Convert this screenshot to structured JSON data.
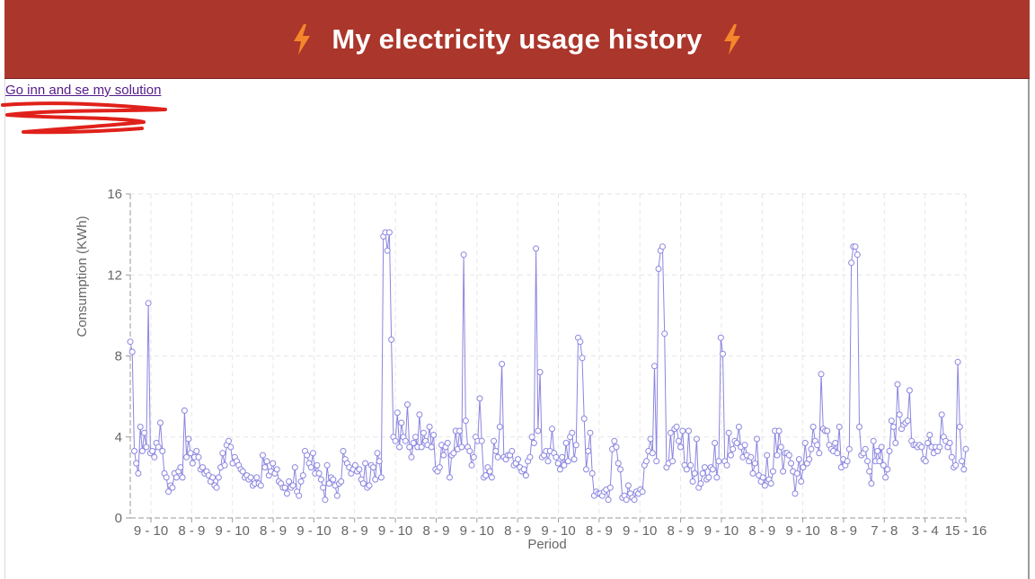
{
  "header": {
    "title": "My electricity usage history",
    "background": "#ab362b",
    "icon": "lightning-bolt-icon",
    "icon_color": "#f5862b"
  },
  "link": {
    "text": "Go inn and se my solution"
  },
  "annotation": {
    "icon": "red-scribble-underline",
    "color": "#e0211b"
  },
  "chart_data": {
    "type": "line",
    "title": "",
    "xlabel": "Period",
    "ylabel": "Consumption (KWh)",
    "ylim": [
      0,
      16
    ],
    "yticks": [
      0,
      4,
      8,
      12,
      16
    ],
    "grid": true,
    "line_color": "#8b85e0",
    "x_tick_labels": [
      "9 - 10",
      "8 - 9",
      "9 - 10",
      "8 - 9",
      "9 - 10",
      "8 - 9",
      "9 - 10",
      "8 - 9",
      "9 - 10",
      "8 - 9",
      "9 - 10",
      "8 - 9",
      "9 - 10",
      "8 - 9",
      "9 - 10",
      "8 - 9",
      "9 - 10",
      "8 - 9",
      "7 - 8",
      "3 - 4",
      "15 - 16"
    ],
    "series": [
      {
        "values": [
          8.7,
          8.2,
          3.3,
          2.7,
          2.2,
          4.5,
          3.3,
          4.2,
          3.5,
          10.6,
          3.2,
          3.3,
          3.0,
          3.7,
          3.5,
          4.7,
          3.3,
          2.2,
          2.0,
          1.3,
          1.6,
          1.5,
          2.2,
          2.0,
          2.3,
          2.5,
          2.0,
          5.3,
          3.0,
          3.9,
          3.2,
          2.7,
          3.0,
          3.3,
          3.0,
          2.4,
          2.5,
          2.2,
          2.3,
          2.1,
          1.8,
          2.0,
          1.6,
          1.5,
          2.0,
          2.5,
          3.2,
          2.6,
          3.6,
          3.8,
          3.5,
          2.7,
          3.0,
          2.8,
          2.6,
          2.4,
          2.3,
          2.0,
          2.1,
          1.9,
          2.0,
          1.6,
          1.7,
          2.0,
          1.7,
          1.6,
          3.1,
          2.5,
          2.8,
          2.1,
          2.3,
          2.7,
          2.2,
          2.4,
          1.8,
          1.7,
          1.5,
          1.5,
          1.2,
          1.8,
          1.5,
          1.6,
          2.5,
          1.3,
          1.1,
          1.8,
          2.1,
          3.3,
          3.1,
          2.7,
          2.5,
          3.2,
          2.2,
          2.6,
          2.2,
          1.9,
          1.5,
          0.9,
          2.6,
          1.7,
          2.0,
          1.9,
          1.6,
          1.1,
          1.7,
          1.8,
          3.3,
          2.9,
          2.7,
          2.5,
          2.2,
          2.4,
          2.6,
          2.3,
          2.4,
          1.9,
          1.7,
          2.7,
          1.5,
          1.6,
          2.6,
          2.5,
          1.9,
          3.2,
          2.8,
          2.0,
          13.9,
          14.1,
          13.2,
          14.1,
          8.8,
          4.0,
          3.8,
          5.2,
          3.5,
          4.7,
          4.0,
          3.8,
          5.6,
          3.5,
          3.0,
          3.7,
          4.0,
          3.5,
          5.1,
          3.5,
          4.2,
          3.8,
          3.6,
          4.5,
          3.5,
          4.1,
          2.4,
          2.3,
          2.5,
          3.6,
          3.1,
          3.5,
          3.7,
          2.0,
          3.1,
          3.2,
          4.3,
          3.4,
          4.3,
          3.5,
          13.0,
          4.8,
          3.5,
          3.3,
          2.6,
          3.0,
          4.0,
          3.8,
          5.9,
          3.8,
          2.0,
          2.1,
          2.5,
          2.3,
          2.0,
          3.8,
          3.3,
          3.0,
          4.5,
          7.6,
          3.0,
          2.9,
          3.1,
          3.1,
          3.3,
          2.6,
          2.7,
          2.9,
          2.5,
          2.3,
          2.4,
          2.1,
          2.8,
          3.0,
          4.0,
          3.7,
          13.3,
          4.3,
          7.2,
          3.0,
          3.1,
          3.3,
          2.8,
          3.3,
          4.4,
          3.2,
          3.0,
          2.7,
          2.4,
          3.0,
          2.6,
          3.7,
          2.8,
          4.0,
          4.2,
          2.9,
          3.6,
          8.9,
          8.7,
          7.9,
          4.9,
          2.4,
          3.3,
          4.2,
          2.2,
          1.1,
          1.3,
          1.2,
          1.2,
          1.1,
          1.3,
          1.4,
          0.9,
          1.5,
          3.4,
          3.8,
          3.5,
          2.7,
          2.4,
          1.0,
          1.1,
          0.9,
          1.6,
          1.2,
          1.0,
          0.9,
          1.3,
          1.2,
          1.4,
          1.3,
          2.6,
          2.8,
          3.3,
          3.9,
          3.2,
          7.5,
          2.8,
          12.3,
          13.2,
          13.4,
          9.1,
          2.5,
          2.7,
          4.2,
          2.8,
          4.4,
          4.5,
          3.8,
          3.5,
          4.3,
          2.6,
          2.4,
          4.3,
          2.6,
          1.8,
          2.2,
          3.9,
          1.5,
          1.7,
          2.2,
          2.5,
          1.9,
          2.0,
          2.5,
          2.4,
          3.7,
          2.0,
          2.8,
          8.9,
          8.1,
          2.8,
          2.6,
          4.2,
          3.1,
          3.4,
          3.8,
          3.7,
          4.5,
          3.5,
          3.0,
          3.6,
          3.1,
          2.8,
          3.0,
          2.2,
          2.7,
          3.9,
          2.1,
          1.8,
          2.0,
          1.6,
          3.1,
          1.9,
          1.7,
          2.3,
          4.3,
          3.1,
          4.3,
          3.5,
          2.3,
          3.2,
          3.2,
          3.1,
          2.7,
          2.3,
          1.2,
          2.2,
          2.9,
          1.8,
          2.5,
          3.7,
          2.7,
          2.9,
          3.4,
          4.5,
          3.8,
          3.6,
          3.2,
          7.1,
          4.4,
          4.3,
          4.3,
          3.6,
          3.4,
          3.3,
          3.7,
          3.2,
          4.5,
          2.5,
          2.9,
          2.6,
          2.8,
          3.4,
          12.6,
          13.4,
          13.4,
          13.0,
          4.5,
          3.1,
          3.2,
          3.4,
          2.8,
          2.3,
          1.7,
          3.8,
          2.8,
          3.3,
          2.8,
          3.5,
          2.6,
          2.0,
          2.4,
          3.3,
          4.8,
          4.5,
          3.7,
          6.6,
          5.1,
          4.4,
          4.6,
          4.7,
          4.8,
          6.3,
          3.8,
          3.6,
          3.6,
          3.5,
          3.6,
          3.5,
          2.9,
          2.8,
          3.7,
          4.1,
          3.5,
          3.2,
          3.5,
          3.3,
          3.5,
          5.1,
          4.0,
          3.8,
          3.5,
          3.7,
          3.0,
          2.5,
          2.6,
          7.7,
          4.5,
          2.8,
          2.4,
          3.4
        ]
      }
    ]
  }
}
